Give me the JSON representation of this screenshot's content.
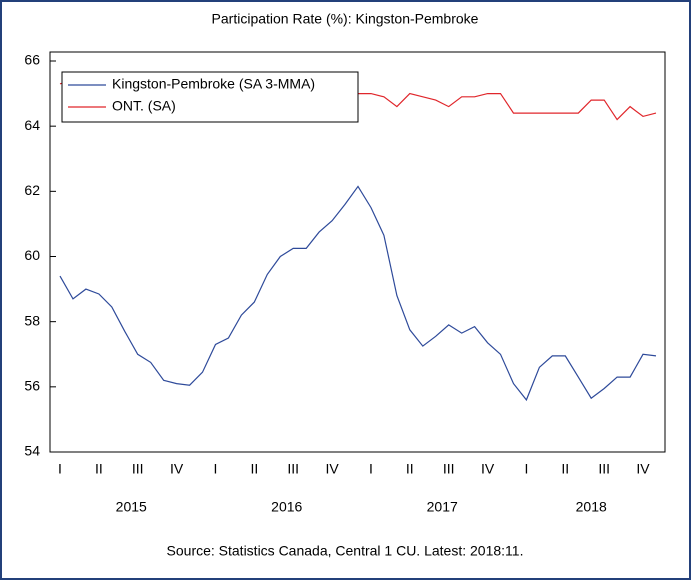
{
  "chart_data": {
    "type": "line",
    "title": "Participation Rate (%): Kingston-Pembroke",
    "source": "Source: Statistics Canada, Central 1 CU. Latest: 2018:11.",
    "categories": [
      "I",
      null,
      null,
      "II",
      null,
      null,
      "III",
      null,
      null,
      "IV",
      null,
      null,
      "I",
      null,
      null,
      "II",
      null,
      null,
      "III",
      null,
      null,
      "IV",
      null,
      null,
      "I",
      null,
      null,
      "II",
      null,
      null,
      "III",
      null,
      null,
      "IV",
      null,
      null,
      "I",
      null,
      null,
      "II",
      null,
      null,
      "III",
      null,
      null,
      "IV",
      null
    ],
    "year_labels": [
      "2015",
      "2016",
      "2017",
      "2018"
    ],
    "series": [
      {
        "name": "Kingston-Pembroke (SA 3-MMA)",
        "color": "#2e4a9a",
        "values": [
          59.4,
          58.7,
          59.0,
          58.85,
          58.45,
          57.7,
          57.0,
          56.75,
          56.2,
          56.1,
          56.05,
          56.45,
          57.3,
          57.5,
          58.2,
          58.6,
          59.45,
          60.0,
          60.25,
          60.25,
          60.75,
          61.1,
          61.6,
          62.15,
          61.5,
          60.65,
          58.8,
          57.75,
          57.25,
          57.55,
          57.9,
          57.65,
          57.85,
          57.35,
          57.0,
          56.1,
          55.6,
          56.6,
          56.95,
          56.95,
          56.3,
          55.65,
          55.95,
          56.3,
          56.3,
          57.0,
          56.95
        ]
      },
      {
        "name": "ONT. (SA)",
        "color": "#e0262b",
        "values": [
          65.3,
          65.4,
          65.4,
          65.3,
          65.4,
          65.4,
          65.3,
          65.2,
          65.2,
          65.2,
          65.3,
          65.3,
          65.2,
          65.2,
          65.2,
          65.3,
          65.2,
          65.1,
          65.2,
          65.2,
          65.1,
          65.2,
          65.1,
          65.0,
          65.0,
          64.9,
          64.6,
          65.0,
          64.9,
          64.8,
          64.6,
          64.9,
          64.9,
          65.0,
          65.0,
          64.4,
          64.4,
          64.4,
          64.4,
          64.4,
          64.4,
          64.8,
          64.8,
          64.2,
          64.6,
          64.3,
          64.4
        ]
      }
    ],
    "ylim": [
      54,
      66
    ],
    "yticks": [
      54,
      56,
      58,
      60,
      62,
      64,
      66
    ],
    "legend": "upper left"
  }
}
